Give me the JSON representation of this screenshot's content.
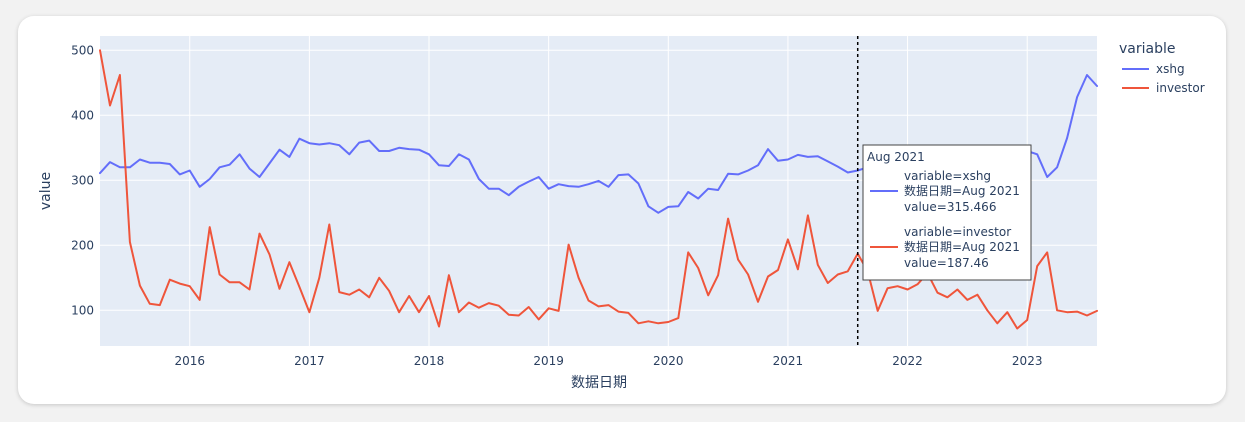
{
  "chart_data": {
    "type": "line",
    "xlabel": "数据日期",
    "ylabel": "value",
    "xlim": [
      "2015-04-01",
      "2023-08-01"
    ],
    "ylim": [
      45,
      522
    ],
    "x_ticks": [
      "2016",
      "2017",
      "2018",
      "2019",
      "2020",
      "2021",
      "2022",
      "2023"
    ],
    "y_ticks": [
      100,
      200,
      300,
      400,
      500
    ],
    "grid": true,
    "legend": {
      "title": "variable",
      "position": "top-right"
    },
    "x": [
      "2015-04",
      "2015-05",
      "2015-06",
      "2015-07",
      "2015-08",
      "2015-09",
      "2015-10",
      "2015-11",
      "2015-12",
      "2016-01",
      "2016-02",
      "2016-03",
      "2016-04",
      "2016-05",
      "2016-06",
      "2016-07",
      "2016-08",
      "2016-09",
      "2016-10",
      "2016-11",
      "2016-12",
      "2017-01",
      "2017-02",
      "2017-03",
      "2017-04",
      "2017-05",
      "2017-06",
      "2017-07",
      "2017-08",
      "2017-09",
      "2017-10",
      "2017-11",
      "2017-12",
      "2018-01",
      "2018-02",
      "2018-03",
      "2018-04",
      "2018-05",
      "2018-06",
      "2018-07",
      "2018-08",
      "2018-09",
      "2018-10",
      "2018-11",
      "2018-12",
      "2019-01",
      "2019-02",
      "2019-03",
      "2019-04",
      "2019-05",
      "2019-06",
      "2019-07",
      "2019-08",
      "2019-09",
      "2019-10",
      "2019-11",
      "2019-12",
      "2020-01",
      "2020-02",
      "2020-03",
      "2020-04",
      "2020-05",
      "2020-06",
      "2020-07",
      "2020-08",
      "2020-09",
      "2020-10",
      "2020-11",
      "2020-12",
      "2021-01",
      "2021-02",
      "2021-03",
      "2021-04",
      "2021-05",
      "2021-06",
      "2021-07",
      "2021-08",
      "2021-09",
      "2021-10",
      "2021-11",
      "2021-12",
      "2022-01",
      "2022-02",
      "2022-03",
      "2022-04",
      "2022-05",
      "2022-06",
      "2022-07",
      "2022-08",
      "2022-09",
      "2022-10",
      "2022-11",
      "2022-12",
      "2023-01",
      "2023-02",
      "2023-03",
      "2023-04",
      "2023-05",
      "2023-06",
      "2023-07",
      "2023-08"
    ],
    "series": [
      {
        "name": "xshg",
        "color": "#636efa",
        "values": [
          311,
          328,
          320,
          320,
          332,
          327,
          327,
          325,
          309,
          315,
          290,
          302,
          320,
          324,
          340,
          318,
          305,
          326,
          347,
          336,
          364,
          357,
          355,
          357,
          354,
          340,
          358,
          361,
          345,
          345,
          350,
          348,
          347,
          340,
          323,
          322,
          340,
          332,
          302,
          287,
          287,
          277,
          290,
          298,
          305,
          287,
          294,
          291,
          290,
          294,
          299,
          290,
          308,
          309,
          295,
          260,
          250,
          259,
          260,
          282,
          272,
          287,
          285,
          310,
          309,
          315,
          323,
          348,
          330,
          332,
          339,
          336,
          337,
          329,
          321,
          312,
          315,
          320,
          323,
          330,
          333,
          336,
          338,
          338,
          337,
          342,
          343,
          342,
          341,
          341,
          340,
          340,
          340,
          345,
          340,
          305,
          320,
          365,
          428,
          462,
          445
        ]
      },
      {
        "name": "investor",
        "color": "#ef553b",
        "values": [
          500,
          415,
          462,
          205,
          138,
          110,
          108,
          147,
          141,
          137,
          116,
          228,
          155,
          143,
          143,
          132,
          218,
          186,
          133,
          174,
          136,
          97,
          150,
          232,
          128,
          124,
          132,
          120,
          150,
          130,
          97,
          122,
          97,
          122,
          75,
          154,
          97,
          112,
          104,
          111,
          107,
          93,
          92,
          105,
          86,
          103,
          99,
          201,
          150,
          115,
          106,
          108,
          98,
          96,
          80,
          83,
          80,
          82,
          88,
          189,
          165,
          123,
          154,
          241,
          178,
          155,
          113,
          152,
          162,
          209,
          163,
          246,
          170,
          142,
          155,
          160,
          187,
          160,
          99,
          134,
          137,
          132,
          140,
          157,
          127,
          120,
          132,
          116,
          124,
          100,
          80,
          97,
          72,
          85,
          168,
          189,
          100,
          97,
          98,
          92,
          99
        ]
      }
    ],
    "hover": {
      "header": "Aug 2021",
      "date_value": "2021-08",
      "entries": [
        {
          "variable": "variable=xshg",
          "date": "数据日期=Aug 2021",
          "value": "value=315.466"
        },
        {
          "variable": "variable=investor",
          "date": "数据日期=Aug 2021",
          "value": "value=187.46"
        }
      ]
    }
  }
}
